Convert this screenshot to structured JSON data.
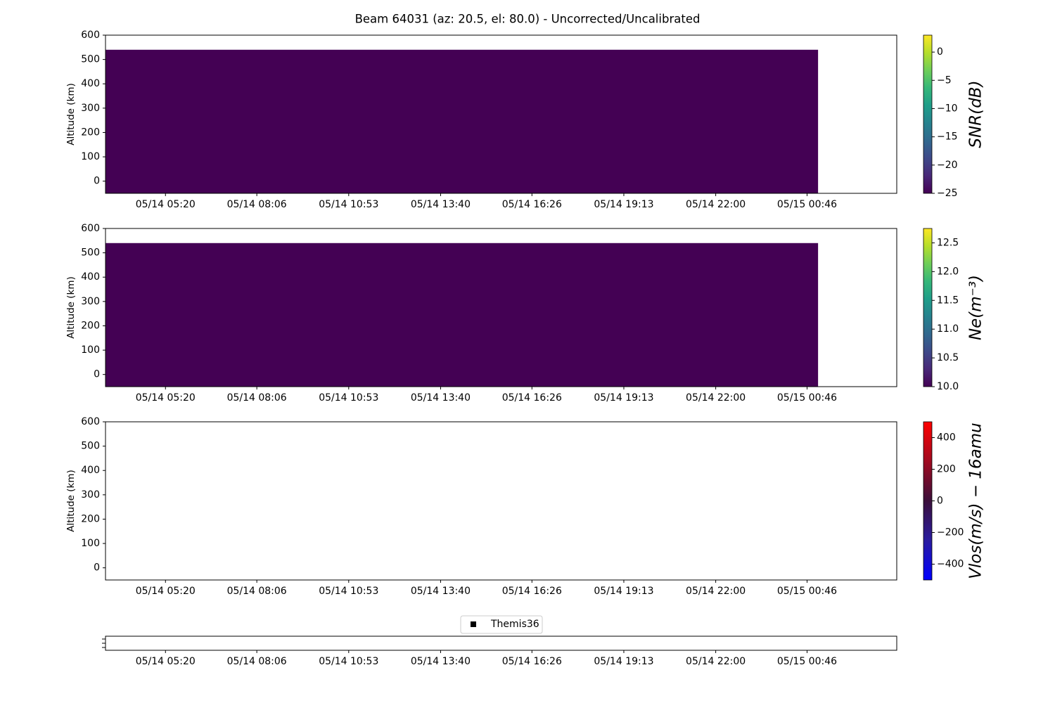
{
  "title": "Beam 64031 (az: 20.5, el: 80.0) - Uncorrected/Uncalibrated",
  "chart_data": [
    {
      "type": "heatmap",
      "y_label": "Altitude (km)",
      "xlim": [
        "05/14 03:31",
        "05/15 03:29"
      ],
      "xticks": [
        "05/14 05:20",
        "05/14 08:06",
        "05/14 10:53",
        "05/14 13:40",
        "05/14 16:26",
        "05/14 19:13",
        "05/14 22:00",
        "05/15 00:46"
      ],
      "ylim": [
        -50,
        600
      ],
      "yticks": [
        0,
        100,
        200,
        300,
        400,
        500,
        600
      ],
      "x": [
        "05/14 03:31",
        "05/15 01:06"
      ],
      "y": [
        -50,
        540
      ],
      "values": [
        [
          -25
        ]
      ],
      "cmap": "viridis",
      "clim": [
        -25,
        3
      ],
      "colorbar_label": "SNR(dB)",
      "cticks": [
        {
          "value": -25,
          "label": "−25"
        },
        {
          "value": -20,
          "label": "−20"
        },
        {
          "value": -15,
          "label": "−15"
        },
        {
          "value": -10,
          "label": "−10"
        },
        {
          "value": -5,
          "label": "−5"
        },
        0
      ]
    },
    {
      "type": "heatmap",
      "y_label": "Altitude (km)",
      "xlim": [
        "05/14 03:31",
        "05/15 03:29"
      ],
      "xticks": [
        "05/14 05:20",
        "05/14 08:06",
        "05/14 10:53",
        "05/14 13:40",
        "05/14 16:26",
        "05/14 19:13",
        "05/14 22:00",
        "05/15 00:46"
      ],
      "ylim": [
        -50,
        600
      ],
      "yticks": [
        0,
        100,
        200,
        300,
        400,
        500,
        600
      ],
      "x": [
        "05/14 03:31",
        "05/15 01:06"
      ],
      "y": [
        -50,
        540
      ],
      "values": [
        [
          10
        ]
      ],
      "cmap": "viridis",
      "clim": [
        10,
        12.75
      ],
      "colorbar_label": "Ne(m⁻³)",
      "cticks": [
        {
          "value": 10,
          "label": "10.0"
        },
        10.5,
        {
          "value": 11,
          "label": "11.0"
        },
        11.5,
        {
          "value": 12,
          "label": "12.0"
        },
        12.5
      ]
    },
    {
      "type": "heatmap",
      "y_label": "Altitude (km)",
      "xlim": [
        "05/14 03:31",
        "05/15 03:29"
      ],
      "xticks": [
        "05/14 05:20",
        "05/14 08:06",
        "05/14 10:53",
        "05/14 13:40",
        "05/14 16:26",
        "05/14 19:13",
        "05/14 22:00",
        "05/15 00:46"
      ],
      "ylim": [
        -50,
        600
      ],
      "yticks": [
        0,
        100,
        200,
        300,
        400,
        500,
        600
      ],
      "values": [],
      "cmap": "bwr",
      "clim": [
        -500,
        500
      ],
      "colorbar_label": "Vlos(m/s) − 16amu",
      "cticks": [
        {
          "value": -400,
          "label": "−400"
        },
        {
          "value": -200,
          "label": "−200"
        },
        0,
        200,
        400
      ]
    },
    {
      "type": "scatter",
      "xlim": [
        "05/14 03:31",
        "05/15 03:29"
      ],
      "xticks": [
        "05/14 05:20",
        "05/14 08:06",
        "05/14 10:53",
        "05/14 13:40",
        "05/14 16:26",
        "05/14 19:13",
        "05/14 22:00",
        "05/15 00:46"
      ],
      "series": [
        {
          "name": "Themis36",
          "color": "#000000",
          "values": []
        }
      ]
    }
  ]
}
